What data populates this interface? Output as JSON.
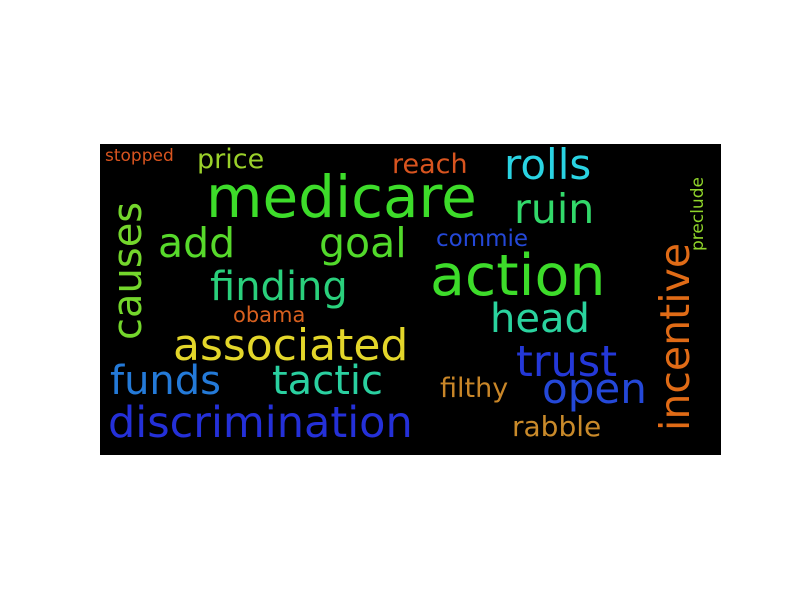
{
  "wordcloud": {
    "words": [
      {
        "text": "medicare",
        "color": "#3ddc2a"
      },
      {
        "text": "action",
        "color": "#3ddc2a"
      },
      {
        "text": "discrimination",
        "color": "#2430d8"
      },
      {
        "text": "associated",
        "color": "#e3d62a"
      },
      {
        "text": "incentive",
        "color": "#e06b16"
      },
      {
        "text": "causes",
        "color": "#74d62c"
      },
      {
        "text": "rolls",
        "color": "#2ad3e2"
      },
      {
        "text": "ruin",
        "color": "#32d96a"
      },
      {
        "text": "add",
        "color": "#57d92b"
      },
      {
        "text": "goal",
        "color": "#52d92b"
      },
      {
        "text": "finding",
        "color": "#2ad07c"
      },
      {
        "text": "head",
        "color": "#2ad39e"
      },
      {
        "text": "trust",
        "color": "#2438d8"
      },
      {
        "text": "open",
        "color": "#2448d8"
      },
      {
        "text": "funds",
        "color": "#247ad8"
      },
      {
        "text": "tactic",
        "color": "#2ad0a0"
      },
      {
        "text": "filthy",
        "color": "#c98628"
      },
      {
        "text": "rabble",
        "color": "#c98a2a"
      },
      {
        "text": "price",
        "color": "#9ad02a"
      },
      {
        "text": "reach",
        "color": "#d8541f"
      },
      {
        "text": "commie",
        "color": "#2448d8"
      },
      {
        "text": "obama",
        "color": "#d8601f"
      },
      {
        "text": "stopped",
        "color": "#d8541f"
      },
      {
        "text": "preclude",
        "color": "#8fd42a"
      }
    ]
  }
}
